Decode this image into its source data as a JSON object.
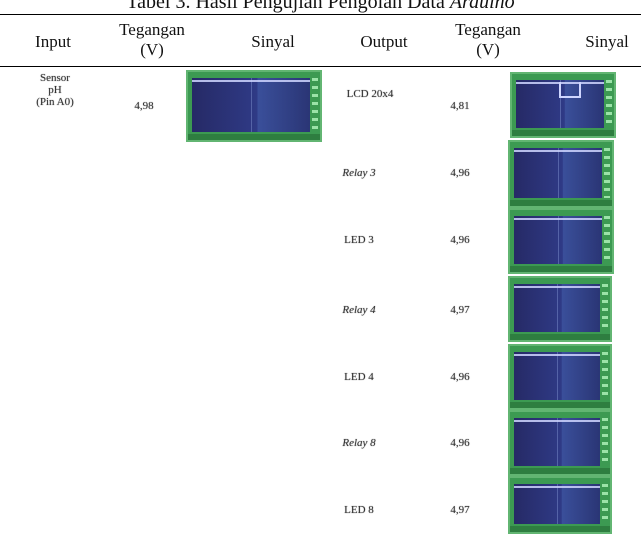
{
  "caption": {
    "text": "Tabel 3. Hasil Pengujian Pengolah Data ",
    "italic": "Arduino"
  },
  "header": {
    "input": "Input",
    "tegangan_in": "Tegangan (V)",
    "sinyal_in": "Sinyal",
    "output": "Output",
    "tegangan_out": "Tegangan (V)",
    "sinyal_out": "Sinyal"
  },
  "input_row": {
    "name_line1": "Sensor",
    "name_line2": "pH",
    "name_line3": "(Pin A0)",
    "voltage": "4,98"
  },
  "outputs": [
    {
      "name": "LCD 20x4",
      "voltage": "4,81",
      "italic": false
    },
    {
      "name": "Relay 3",
      "voltage": "4,96",
      "italic": true
    },
    {
      "name": "LED 3",
      "voltage": "4,96",
      "italic": false
    },
    {
      "name": "Relay 4",
      "voltage": "4,97",
      "italic": true
    },
    {
      "name": "LED 4",
      "voltage": "4,96",
      "italic": false
    },
    {
      "name": "Relay 8",
      "voltage": "4,96",
      "italic": true
    },
    {
      "name": "LED 8",
      "voltage": "4,97",
      "italic": false
    }
  ],
  "colors": {
    "scope_frame": "#3c9a52",
    "scope_screen": "#2a3575"
  }
}
